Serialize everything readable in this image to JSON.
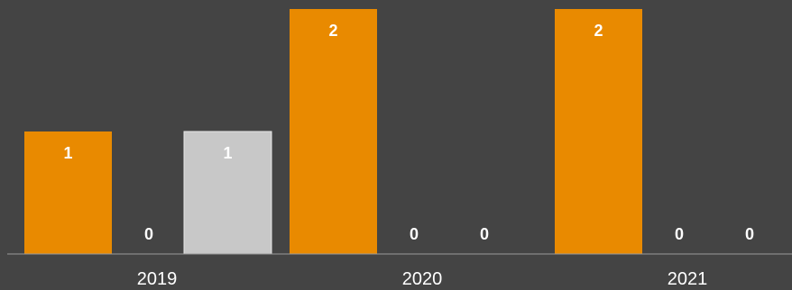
{
  "chart_data": {
    "type": "bar",
    "categories": [
      "2019",
      "2020",
      "2021"
    ],
    "series": [
      {
        "values": [
          1,
          2,
          2
        ],
        "color": "#E98A00"
      },
      {
        "values": [
          0,
          0,
          0
        ],
        "color": "#E98A00"
      },
      {
        "values": [
          1,
          0,
          0
        ],
        "color": "#C8C8C8"
      }
    ],
    "ylim": [
      0,
      2
    ],
    "grid": false,
    "legend": "none",
    "colors": {
      "background": "#444444",
      "axis": "#9A9A9A",
      "label": "#FFFFFF"
    }
  }
}
